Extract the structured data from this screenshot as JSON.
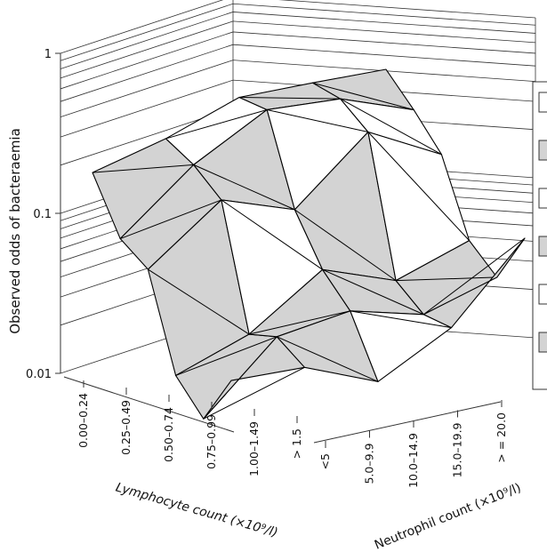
{
  "chart_data": {
    "type": "surface3d",
    "zlabel": "Observed odds of bacteraemia",
    "z_scale": "log",
    "zlim": [
      0.01,
      1
    ],
    "z_ticks": [
      "0.01",
      "0.1",
      "1"
    ],
    "xlabel": "Lymphocyte count (×10⁹/l)",
    "x_categories": [
      "0.00–0.24",
      "0.25–0.49",
      "0.50–0.74",
      "0.75–0.99",
      "1.00–1.49",
      "> 1.5"
    ],
    "ylabel": "Neutrophil count (×10⁹/l)",
    "y_categories": [
      "<5",
      "5.0–9.9",
      "10.0–14.9",
      "15.0–19.9",
      "> = 20.0"
    ],
    "legend": "right (partially cropped)",
    "band_colors": [
      "#ffffff",
      "#d3d3d3"
    ],
    "values": [
      [
        0.3,
        0.45,
        0.75,
        0.85,
        0.95
      ],
      [
        0.12,
        0.32,
        0.65,
        0.7,
        0.55
      ],
      [
        0.08,
        0.2,
        0.16,
        0.45,
        0.3
      ],
      [
        0.018,
        0.03,
        0.07,
        0.055,
        0.09
      ],
      [
        0.01,
        0.03,
        0.04,
        0.035,
        0.055
      ],
      [
        0.018,
        0.02,
        0.015,
        0.03,
        0.1
      ]
    ]
  }
}
